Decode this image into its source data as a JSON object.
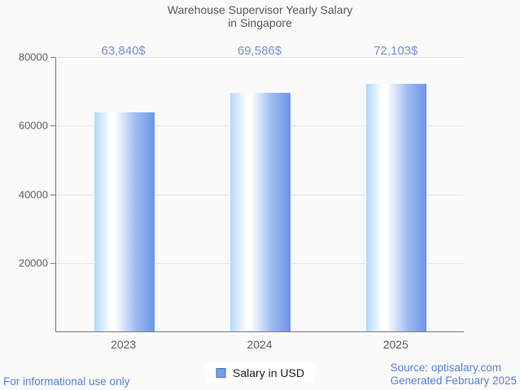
{
  "chart": {
    "title_line1": "Warehouse Supervisor Yearly Salary",
    "title_line2": "in Singapore"
  },
  "chart_data": {
    "type": "bar",
    "title": "Warehouse Supervisor Yearly Salary in Singapore",
    "categories": [
      "2023",
      "2024",
      "2025"
    ],
    "series": [
      {
        "name": "Salary in USD",
        "values": [
          63840,
          69586,
          72103
        ]
      }
    ],
    "values": [
      63840,
      69586,
      72103
    ],
    "value_labels": [
      "63,840$",
      "69,586$",
      "72,103$"
    ],
    "xlabel": "",
    "ylabel": "",
    "ylim": [
      0,
      80000
    ],
    "yticks": [
      20000,
      40000,
      60000,
      80000
    ],
    "ytick_labels": [
      "20000",
      "40000",
      "60000",
      "80000"
    ],
    "grid": true,
    "legend_position": "bottom-center"
  },
  "legend": {
    "label": "Salary in USD",
    "marker_color": "#6d9ff0",
    "marker_border": "#4e71a8"
  },
  "footer": {
    "left_note": "For informational use only",
    "source_line1": "Source: optisalary.com",
    "source_line2": "Generated February 2025"
  },
  "colors": {
    "background": "#fafafa",
    "title_text": "#595959",
    "axis_text": "#5f5f5f",
    "value_label_text": "#7590d8",
    "footer_text": "#5a80d8",
    "gridline": "#e3e3e3",
    "axis_line": "#7e7e7e",
    "bar_gradient_left": "#b2d8fb",
    "bar_gradient_mid": "#ffffff",
    "bar_gradient_right": "#6b93e9"
  }
}
